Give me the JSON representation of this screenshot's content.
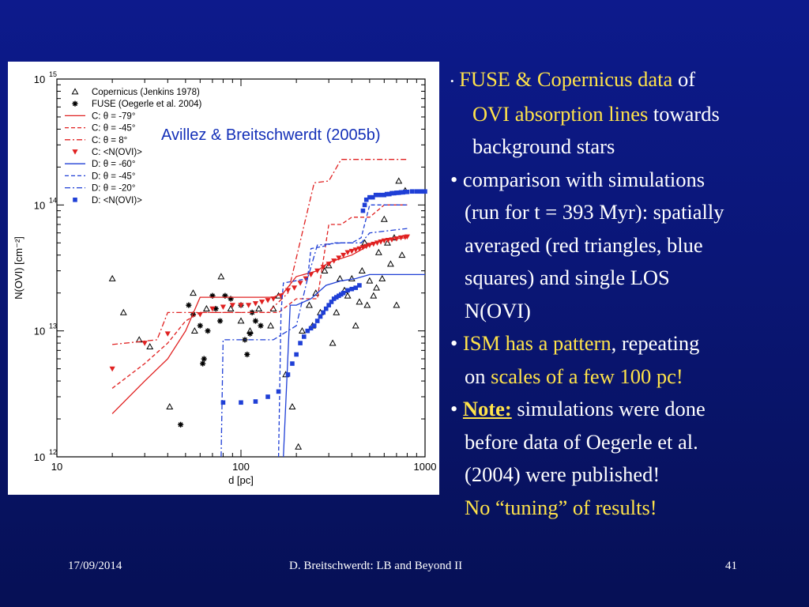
{
  "citation": "Avillez & Breitschwerdt (2005b)",
  "bullets": {
    "b1_part1": "FUSE & Copernicus data",
    "b1_part2": " of",
    "b1_part3": "OVI absorption lines",
    "b1_part4": " towards",
    "b1_part5": "background stars",
    "b2_line1": "• comparison with simulations",
    "b2_line2": "(run for t = 393 Myr): spatially",
    "b2_line3": "averaged (red triangles, blue",
    "b2_line4": "squares) and single LOS",
    "b2_line5": "N(OVI)",
    "b3_part1": "ISM has a pattern",
    "b3_part2": ", repeating",
    "b3_part3": "on ",
    "b3_part4": "scales of a few 100 pc!",
    "b4_note": "Note:",
    "b4_part2": " simulations were done",
    "b4_line2": "before data of Oegerle et al.",
    "b4_line3": "(2004) were published!",
    "b4_line4": "No “tuning” of results!"
  },
  "footer": {
    "date": "17/09/2014",
    "title": "D. Breitschwerdt: LB and Beyond II",
    "page": "41"
  },
  "colors": {
    "red": "#e02020",
    "blue": "#1f3fd6",
    "yellow": "#ffe34a"
  },
  "chart_data": {
    "type": "scatter",
    "xlabel": "d [pc]",
    "ylabel": "N(OVI) [cm⁻²]",
    "xscale": "log",
    "yscale": "log",
    "xlim": [
      10,
      1000
    ],
    "ylim": [
      1000000000000.0,
      1000000000000000.0
    ],
    "x_ticks": [
      "10",
      "100",
      "1000"
    ],
    "y_ticks": [
      "10",
      "10",
      "10",
      "10"
    ],
    "y_tick_exponents": [
      "12",
      "13",
      "14",
      "15"
    ],
    "legend_position": "top-left",
    "series": [
      {
        "name": "Copernicus (Jenkins 1978)",
        "marker": "triangle-open",
        "color": "#000000",
        "points": [
          [
            20,
            26000000000000.0
          ],
          [
            23,
            14000000000000.0
          ],
          [
            28,
            8500000000000.0
          ],
          [
            32,
            7500000000000.0
          ],
          [
            41,
            2500000000000.0
          ],
          [
            55,
            20000000000000.0
          ],
          [
            56,
            10000000000000.0
          ],
          [
            65,
            15000000000000.0
          ],
          [
            78,
            27000000000000.0
          ],
          [
            88,
            15000000000000.0
          ],
          [
            100,
            12000000000000.0
          ],
          [
            112,
            10000000000000.0
          ],
          [
            125,
            15000000000000.0
          ],
          [
            145,
            11000000000000.0
          ],
          [
            150,
            15000000000000.0
          ],
          [
            160,
            19000000000000.0
          ],
          [
            175,
            4500000000000.0
          ],
          [
            190,
            2500000000000.0
          ],
          [
            205,
            1200000000000.0
          ],
          [
            215,
            10000000000000.0
          ],
          [
            235,
            16000000000000.0
          ],
          [
            245,
            11000000000000.0
          ],
          [
            255,
            20000000000000.0
          ],
          [
            270,
            14000000000000.0
          ],
          [
            285,
            30000000000000.0
          ],
          [
            300,
            33000000000000.0
          ],
          [
            315,
            8000000000000.0
          ],
          [
            330,
            14000000000000.0
          ],
          [
            345,
            26000000000000.0
          ],
          [
            365,
            21000000000000.0
          ],
          [
            380,
            19000000000000.0
          ],
          [
            400,
            26000000000000.0
          ],
          [
            420,
            11000000000000.0
          ],
          [
            440,
            17000000000000.0
          ],
          [
            455,
            30000000000000.0
          ],
          [
            470,
            50000000000000.0
          ],
          [
            485,
            16000000000000.0
          ],
          [
            500,
            25000000000000.0
          ],
          [
            525,
            19000000000000.0
          ],
          [
            545,
            22000000000000.0
          ],
          [
            560,
            42000000000000.0
          ],
          [
            585,
            26000000000000.0
          ],
          [
            600,
            77000000000000.0
          ],
          [
            625,
            50000000000000.0
          ],
          [
            650,
            34000000000000.0
          ],
          [
            680,
            55000000000000.0
          ],
          [
            700,
            16000000000000.0
          ],
          [
            720,
            155000000000000.0
          ],
          [
            750,
            40000000000000.0
          ],
          [
            780,
            130000000000000.0
          ]
        ]
      },
      {
        "name": "FUSE (Oegerle et al. 2004)",
        "marker": "star",
        "color": "#000000",
        "points": [
          [
            47,
            1800000000000.0
          ],
          [
            52,
            16000000000000.0
          ],
          [
            55,
            13500000000000.0
          ],
          [
            60,
            11000000000000.0
          ],
          [
            62,
            5500000000000.0
          ],
          [
            63,
            6000000000000.0
          ],
          [
            66,
            10000000000000.0
          ],
          [
            70,
            19000000000000.0
          ],
          [
            73,
            15000000000000.0
          ],
          [
            77,
            12000000000000.0
          ],
          [
            82,
            19000000000000.0
          ],
          [
            88,
            18000000000000.0
          ],
          [
            100,
            16000000000000.0
          ],
          [
            105,
            8500000000000.0
          ],
          [
            108,
            6500000000000.0
          ],
          [
            112,
            9500000000000.0
          ],
          [
            115,
            14000000000000.0
          ],
          [
            120,
            12000000000000.0
          ],
          [
            128,
            11000000000000.0
          ]
        ]
      },
      {
        "name": "C: θ = -79°",
        "style": "solid",
        "color": "#e02020",
        "points": [
          [
            20,
            2200000000000.0
          ],
          [
            30,
            4000000000000.0
          ],
          [
            40,
            6000000000000.0
          ],
          [
            50,
            10000000000000.0
          ],
          [
            60,
            18500000000000.0
          ],
          [
            150,
            18500000000000.0
          ],
          [
            170,
            20000000000000.0
          ],
          [
            200,
            27000000000000.0
          ],
          [
            260,
            30000000000000.0
          ],
          [
            300,
            35000000000000.0
          ],
          [
            400,
            40000000000000.0
          ],
          [
            500,
            48000000000000.0
          ],
          [
            600,
            53000000000000.0
          ],
          [
            800,
            55000000000000.0
          ]
        ]
      },
      {
        "name": "C: θ = -45°",
        "style": "dashed",
        "color": "#e02020",
        "points": [
          [
            20,
            3500000000000.0
          ],
          [
            30,
            5500000000000.0
          ],
          [
            40,
            8000000000000.0
          ],
          [
            50,
            12000000000000.0
          ],
          [
            60,
            14000000000000.0
          ],
          [
            160,
            14000000000000.0
          ],
          [
            200,
            18000000000000.0
          ],
          [
            260,
            18000000000000.0
          ],
          [
            300,
            70000000000000.0
          ],
          [
            350,
            70000000000000.0
          ],
          [
            400,
            80000000000000.0
          ],
          [
            500,
            80000000000000.0
          ],
          [
            600,
            100000000000000.0
          ],
          [
            800,
            100000000000000.0
          ]
        ]
      },
      {
        "name": "C: θ = 8°",
        "style": "dashdot",
        "color": "#e02020",
        "points": [
          [
            20,
            7800000000000.0
          ],
          [
            35,
            8500000000000.0
          ],
          [
            40,
            14000000000000.0
          ],
          [
            140,
            14000000000000.0
          ],
          [
            180,
            20000000000000.0
          ],
          [
            250,
            150000000000000.0
          ],
          [
            300,
            155000000000000.0
          ],
          [
            350,
            230000000000000.0
          ],
          [
            450,
            230000000000000.0
          ],
          [
            800,
            230000000000000.0
          ]
        ]
      },
      {
        "name": "C: <N(OVI)>",
        "marker": "triangle-down-filled",
        "color": "#e02020",
        "points": [
          [
            20,
            5000000000000.0
          ],
          [
            30,
            8000000000000.0
          ],
          [
            40,
            9500000000000.0
          ],
          [
            60,
            13500000000000.0
          ],
          [
            70,
            15000000000000.0
          ],
          [
            80,
            15500000000000.0
          ],
          [
            90,
            16000000000000.0
          ],
          [
            100,
            16000000000000.0
          ],
          [
            110,
            16000000000000.0
          ],
          [
            120,
            16500000000000.0
          ],
          [
            130,
            17000000000000.0
          ],
          [
            140,
            17500000000000.0
          ],
          [
            150,
            18000000000000.0
          ],
          [
            165,
            19000000000000.0
          ],
          [
            180,
            21000000000000.0
          ],
          [
            195,
            22000000000000.0
          ],
          [
            210,
            24000000000000.0
          ],
          [
            225,
            26000000000000.0
          ],
          [
            240,
            28000000000000.0
          ],
          [
            260,
            30000000000000.0
          ],
          [
            280,
            32000000000000.0
          ],
          [
            300,
            34000000000000.0
          ],
          [
            320,
            36000000000000.0
          ],
          [
            340,
            38000000000000.0
          ],
          [
            360,
            40000000000000.0
          ],
          [
            380,
            42000000000000.0
          ],
          [
            400,
            43000000000000.0
          ],
          [
            420,
            44000000000000.0
          ],
          [
            440,
            45000000000000.0
          ],
          [
            460,
            46000000000000.0
          ],
          [
            480,
            47000000000000.0
          ],
          [
            500,
            48000000000000.0
          ],
          [
            525,
            49000000000000.0
          ],
          [
            550,
            50000000000000.0
          ],
          [
            575,
            51000000000000.0
          ],
          [
            600,
            52000000000000.0
          ],
          [
            630,
            52500000000000.0
          ],
          [
            660,
            53000000000000.0
          ],
          [
            700,
            54000000000000.0
          ],
          [
            740,
            55000000000000.0
          ],
          [
            780,
            55500000000000.0
          ],
          [
            800,
            56000000000000.0
          ]
        ]
      },
      {
        "name": "D: θ = -60°",
        "style": "solid",
        "color": "#1f3fd6",
        "points": [
          [
            170,
            1000000000000.0
          ],
          [
            185,
            16000000000000.0
          ],
          [
            200,
            16000000000000.0
          ],
          [
            240,
            18000000000000.0
          ],
          [
            290,
            23000000000000.0
          ],
          [
            350,
            25000000000000.0
          ],
          [
            420,
            26000000000000.0
          ],
          [
            500,
            28000000000000.0
          ],
          [
            800,
            28000000000000.0
          ],
          [
            1000,
            28000000000000.0
          ]
        ]
      },
      {
        "name": "D: θ = -45°",
        "style": "dashed",
        "color": "#1f3fd6",
        "points": [
          [
            160,
            1000000000000.0
          ],
          [
            165,
            14000000000000.0
          ],
          [
            170,
            24000000000000.0
          ],
          [
            230,
            26000000000000.0
          ],
          [
            240,
            45000000000000.0
          ],
          [
            280,
            47000000000000.0
          ],
          [
            320,
            50000000000000.0
          ],
          [
            400,
            50000000000000.0
          ],
          [
            450,
            55000000000000.0
          ],
          [
            500,
            100000000000000.0
          ],
          [
            600,
            100000000000000.0
          ],
          [
            800,
            100000000000000.0
          ]
        ]
      },
      {
        "name": "D: θ = -20°",
        "style": "dashdot",
        "color": "#1f3fd6",
        "points": [
          [
            78,
            1000000000000.0
          ],
          [
            80,
            8500000000000.0
          ],
          [
            150,
            8500000000000.0
          ],
          [
            200,
            11000000000000.0
          ],
          [
            230,
            26000000000000.0
          ],
          [
            260,
            48000000000000.0
          ],
          [
            350,
            50000000000000.0
          ],
          [
            450,
            50000000000000.0
          ],
          [
            500,
            60000000000000.0
          ],
          [
            800,
            65000000000000.0
          ]
        ]
      },
      {
        "name": "D: <N(OVI)>",
        "marker": "square-filled",
        "color": "#1f3fd6",
        "points": [
          [
            80,
            2700000000000.0
          ],
          [
            100,
            2700000000000.0
          ],
          [
            120,
            2750000000000.0
          ],
          [
            140,
            3000000000000.0
          ],
          [
            160,
            3300000000000.0
          ],
          [
            180,
            4500000000000.0
          ],
          [
            190,
            5500000000000.0
          ],
          [
            200,
            6500000000000.0
          ],
          [
            210,
            8000000000000.0
          ],
          [
            220,
            9000000000000.0
          ],
          [
            230,
            10000000000000.0
          ],
          [
            240,
            10500000000000.0
          ],
          [
            250,
            11000000000000.0
          ],
          [
            260,
            12000000000000.0
          ],
          [
            270,
            13000000000000.0
          ],
          [
            280,
            14000000000000.0
          ],
          [
            290,
            15000000000000.0
          ],
          [
            300,
            16000000000000.0
          ],
          [
            310,
            17000000000000.0
          ],
          [
            320,
            18000000000000.0
          ],
          [
            330,
            18500000000000.0
          ],
          [
            340,
            19000000000000.0
          ],
          [
            350,
            19500000000000.0
          ],
          [
            360,
            20000000000000.0
          ],
          [
            380,
            21000000000000.0
          ],
          [
            400,
            21500000000000.0
          ],
          [
            420,
            22000000000000.0
          ],
          [
            440,
            23000000000000.0
          ],
          [
            460,
            90000000000000.0
          ],
          [
            470,
            100000000000000.0
          ],
          [
            480,
            110000000000000.0
          ],
          [
            500,
            115000000000000.0
          ],
          [
            520,
            115000000000000.0
          ],
          [
            540,
            120000000000000.0
          ],
          [
            560,
            120000000000000.0
          ],
          [
            580,
            120000000000000.0
          ],
          [
            600,
            120000000000000.0
          ],
          [
            620,
            122000000000000.0
          ],
          [
            640,
            122000000000000.0
          ],
          [
            660,
            124000000000000.0
          ],
          [
            680,
            124000000000000.0
          ],
          [
            700,
            125000000000000.0
          ],
          [
            720,
            125000000000000.0
          ],
          [
            740,
            126000000000000.0
          ],
          [
            760,
            126000000000000.0
          ],
          [
            780,
            127000000000000.0
          ],
          [
            800,
            127000000000000.0
          ],
          [
            850,
            128000000000000.0
          ],
          [
            900,
            128000000000000.0
          ],
          [
            950,
            128000000000000.0
          ],
          [
            1000,
            128000000000000.0
          ]
        ]
      }
    ]
  }
}
